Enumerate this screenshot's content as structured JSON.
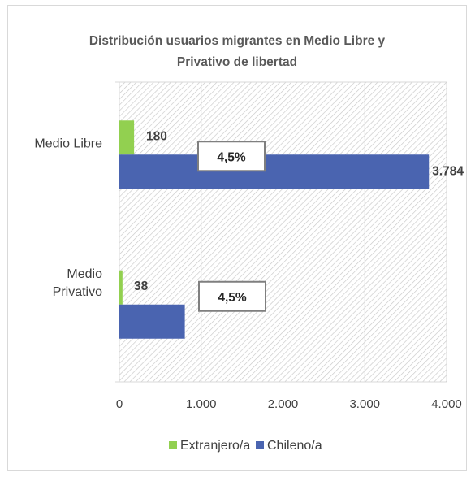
{
  "chart_data": {
    "type": "bar",
    "orientation": "horizontal",
    "title": "Distribución usuarios migrantes en Medio Libre y Privativo de libertad",
    "title_lines": [
      "Distribución usuarios migrantes en Medio Libre y",
      "Privativo de libertad"
    ],
    "categories": [
      "Medio Libre",
      "Medio Privativo"
    ],
    "category_lines": [
      [
        "Medio Libre"
      ],
      [
        "Medio",
        "Privativo"
      ]
    ],
    "series": [
      {
        "name": "Extranjero/a",
        "color": "#92d050",
        "values": [
          180,
          38
        ],
        "labels": [
          "180",
          "38"
        ]
      },
      {
        "name": "Chileno/a",
        "color": "#4a64b0",
        "values": [
          3784,
          800
        ],
        "labels": [
          "3.784",
          ""
        ]
      }
    ],
    "xlim": [
      0,
      4000
    ],
    "xticks": [
      {
        "value": 0,
        "label": "0"
      },
      {
        "value": 1000,
        "label": "1.000"
      },
      {
        "value": 2000,
        "label": "2.000"
      },
      {
        "value": 3000,
        "label": "3.000"
      },
      {
        "value": 4000,
        "label": "4.000"
      }
    ],
    "annotations": [
      "4,5%",
      "4,5%"
    ],
    "grid": true,
    "plot_background": "diagonal-hatch",
    "legend_position": "bottom"
  }
}
